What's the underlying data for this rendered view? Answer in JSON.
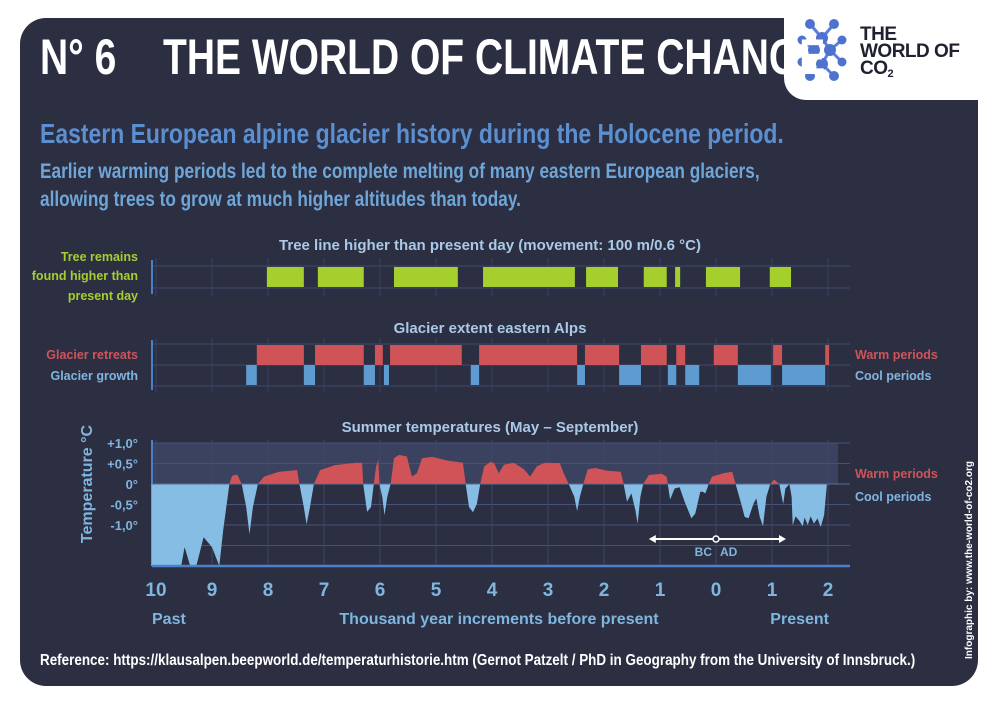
{
  "header": {
    "number": "N° 6",
    "title": "THE WORLD OF CLIMATE CHANGE"
  },
  "logo": {
    "line1": "THE",
    "line2": "WORLD OF",
    "line3": "CO",
    "line3_sub": "2"
  },
  "subtitle": "Eastern European alpine glacier history during the Holocene period.",
  "description": [
    "Earlier warming periods led to the complete melting of many eastern European glaciers,",
    "allowing trees to grow at much higher altitudes than today."
  ],
  "reference": "Reference: https://klausalpen.beepworld.de/temperaturhistorie.htm (Gernot Patzelt / PhD in Geography from the University of Innsbruck.)",
  "credit": "Infographic by: www.the-world-of-co2.org",
  "colors": {
    "background": "#2c2e42",
    "green": "#a4cf2d",
    "red": "#d05457",
    "blue": "#5e9bd1",
    "cool_fill": "#86bde4",
    "label_blue": "#7fb6e0"
  },
  "chart_data": [
    {
      "type": "bar",
      "title": "Tree line higher than present day (movement: 100 m/0.6 °C)",
      "row_label": [
        "Tree remains",
        "found higher than",
        "present day"
      ],
      "series": [
        {
          "name": "Tree remains found higher than present day",
          "intervals": [
            [
              -8.02,
              -7.36
            ],
            [
              -7.11,
              -6.29
            ],
            [
              -5.75,
              -4.61
            ],
            [
              -4.16,
              -2.52
            ],
            [
              -2.32,
              -1.75
            ],
            [
              -1.29,
              -0.88
            ],
            [
              -0.73,
              -0.64
            ],
            [
              -0.18,
              0.43
            ],
            [
              0.96,
              1.34
            ]
          ]
        }
      ]
    },
    {
      "type": "bar",
      "title": "Glacier extent eastern Alps",
      "series": [
        {
          "name": "Glacier retreats",
          "legend": "Warm periods",
          "intervals": [
            [
              -8.2,
              -7.36
            ],
            [
              -7.16,
              -6.29
            ],
            [
              -6.09,
              -5.95
            ],
            [
              -5.82,
              -4.54
            ],
            [
              -4.23,
              -2.48
            ],
            [
              -2.34,
              -1.73
            ],
            [
              -1.34,
              -0.88
            ],
            [
              -0.71,
              -0.55
            ],
            [
              -0.04,
              0.39
            ],
            [
              1.02,
              1.18
            ],
            [
              1.95,
              2.02
            ]
          ]
        },
        {
          "name": "Glacier growth",
          "legend": "Cool periods",
          "intervals": [
            [
              -8.39,
              -8.2
            ],
            [
              -7.36,
              -7.16
            ],
            [
              -6.29,
              -6.09
            ],
            [
              -5.93,
              -5.84
            ],
            [
              -4.38,
              -4.23
            ],
            [
              -2.48,
              -2.34
            ],
            [
              -1.73,
              -1.34
            ],
            [
              -0.86,
              -0.71
            ],
            [
              -0.55,
              -0.3
            ],
            [
              0.39,
              0.98
            ],
            [
              1.18,
              1.95
            ]
          ]
        }
      ]
    },
    {
      "type": "area",
      "title": "Summer temperatures (May – September)",
      "ylabel": "Temperature °C",
      "xlabel": "Thousand year increments before present",
      "x_left_label": "Past",
      "x_right_label": "Present",
      "xlim": [
        -10.08,
        2.2
      ],
      "ylim": [
        -2.0,
        1.0
      ],
      "yticks": [
        {
          "v": 1.0,
          "label": "+1,0°"
        },
        {
          "v": 0.5,
          "label": "+0,5°"
        },
        {
          "v": 0,
          "label": "0°"
        },
        {
          "v": -0.5,
          "label": "-0,5°"
        },
        {
          "v": -1.0,
          "label": "-1,0°"
        }
      ],
      "xticks": [
        {
          "v": -10,
          "label": "10"
        },
        {
          "v": -9,
          "label": "9"
        },
        {
          "v": -8,
          "label": "8"
        },
        {
          "v": -7,
          "label": "7"
        },
        {
          "v": -6,
          "label": "6"
        },
        {
          "v": -5,
          "label": "5"
        },
        {
          "v": -4,
          "label": "4"
        },
        {
          "v": -3,
          "label": "3"
        },
        {
          "v": -2,
          "label": "2"
        },
        {
          "v": -1,
          "label": "1"
        },
        {
          "v": 0,
          "label": "0"
        },
        {
          "v": 1,
          "label": "1"
        },
        {
          "v": 2,
          "label": "2"
        }
      ],
      "legend": {
        "warm": "Warm periods",
        "cool": "Cool periods"
      },
      "era": {
        "bc": "BC",
        "ad": "AD",
        "arrow_from": -1.2,
        "arrow_to": 1.25
      },
      "points": [
        [
          -10.08,
          0
        ],
        [
          -10.08,
          -2
        ],
        [
          -9.55,
          -2
        ],
        [
          -9.49,
          -1.54
        ],
        [
          -9.39,
          -2
        ],
        [
          -9.28,
          -2
        ],
        [
          -9.15,
          -1.3
        ],
        [
          -9.0,
          -1.54
        ],
        [
          -8.87,
          -2
        ],
        [
          -8.8,
          -1.13
        ],
        [
          -8.69,
          0
        ],
        [
          -8.64,
          0.2
        ],
        [
          -8.55,
          0.23
        ],
        [
          -8.47,
          0
        ],
        [
          -8.39,
          -0.56
        ],
        [
          -8.33,
          -1.23
        ],
        [
          -8.27,
          -0.56
        ],
        [
          -8.18,
          0
        ],
        [
          -8.07,
          0.18
        ],
        [
          -7.8,
          0.3
        ],
        [
          -7.48,
          0.34
        ],
        [
          -7.44,
          0
        ],
        [
          -7.36,
          -0.56
        ],
        [
          -7.31,
          -0.98
        ],
        [
          -7.25,
          -0.56
        ],
        [
          -7.18,
          0
        ],
        [
          -7.07,
          0.34
        ],
        [
          -6.8,
          0.46
        ],
        [
          -6.43,
          0.52
        ],
        [
          -6.32,
          0.52
        ],
        [
          -6.3,
          0
        ],
        [
          -6.23,
          -0.68
        ],
        [
          -6.16,
          -0.56
        ],
        [
          -6.11,
          0
        ],
        [
          -6.07,
          0.43
        ],
        [
          -6.03,
          0.59
        ],
        [
          -6.01,
          0
        ],
        [
          -5.96,
          -0.31
        ],
        [
          -5.92,
          -0.76
        ],
        [
          -5.87,
          -0.31
        ],
        [
          -5.81,
          0
        ],
        [
          -5.75,
          0.63
        ],
        [
          -5.66,
          0.71
        ],
        [
          -5.52,
          0.67
        ],
        [
          -5.43,
          0.18
        ],
        [
          -5.34,
          0.26
        ],
        [
          -5.25,
          0.63
        ],
        [
          -5.07,
          0.66
        ],
        [
          -4.79,
          0.57
        ],
        [
          -4.52,
          0.52
        ],
        [
          -4.47,
          0
        ],
        [
          -4.41,
          -0.56
        ],
        [
          -4.34,
          -0.69
        ],
        [
          -4.27,
          -0.48
        ],
        [
          -4.21,
          0
        ],
        [
          -4.14,
          0.43
        ],
        [
          -4.03,
          0.54
        ],
        [
          -3.96,
          0.51
        ],
        [
          -3.88,
          0.26
        ],
        [
          -3.79,
          0.47
        ],
        [
          -3.61,
          0.52
        ],
        [
          -3.43,
          0.36
        ],
        [
          -3.32,
          0.18
        ],
        [
          -3.2,
          0.43
        ],
        [
          -3.06,
          0.52
        ],
        [
          -2.79,
          0.51
        ],
        [
          -2.72,
          0.26
        ],
        [
          -2.63,
          0
        ],
        [
          -2.53,
          -0.31
        ],
        [
          -2.48,
          -0.66
        ],
        [
          -2.43,
          -0.31
        ],
        [
          -2.37,
          0
        ],
        [
          -2.29,
          0.36
        ],
        [
          -2.15,
          0.39
        ],
        [
          -1.97,
          0.33
        ],
        [
          -1.7,
          0.3
        ],
        [
          -1.65,
          0
        ],
        [
          -1.59,
          -0.43
        ],
        [
          -1.51,
          -0.23
        ],
        [
          -1.44,
          -0.64
        ],
        [
          -1.4,
          -0.97
        ],
        [
          -1.35,
          -0.31
        ],
        [
          -1.3,
          0
        ],
        [
          -1.2,
          0.22
        ],
        [
          -0.97,
          0.25
        ],
        [
          -0.88,
          0.18
        ],
        [
          -0.86,
          0
        ],
        [
          -0.82,
          -0.38
        ],
        [
          -0.74,
          -0.11
        ],
        [
          -0.65,
          -0.08
        ],
        [
          -0.56,
          -0.43
        ],
        [
          -0.44,
          -0.84
        ],
        [
          -0.37,
          -0.72
        ],
        [
          -0.28,
          -0.19
        ],
        [
          -0.24,
          -0.19
        ],
        [
          -0.19,
          -0.23
        ],
        [
          -0.13,
          0
        ],
        [
          -0.07,
          0.18
        ],
        [
          0.13,
          0.26
        ],
        [
          0.29,
          0.3
        ],
        [
          0.35,
          0
        ],
        [
          0.45,
          -0.48
        ],
        [
          0.51,
          -0.8
        ],
        [
          0.58,
          -0.84
        ],
        [
          0.67,
          -0.48
        ],
        [
          0.72,
          -0.35
        ],
        [
          0.78,
          -0.8
        ],
        [
          0.84,
          -1.03
        ],
        [
          0.9,
          -0.31
        ],
        [
          0.97,
          0
        ],
        [
          1.04,
          0.11
        ],
        [
          1.13,
          0
        ],
        [
          1.2,
          -0.49
        ],
        [
          1.24,
          -0.11
        ],
        [
          1.31,
          0
        ],
        [
          1.35,
          -0.31
        ],
        [
          1.37,
          -1.01
        ],
        [
          1.42,
          -0.79
        ],
        [
          1.49,
          -0.9
        ],
        [
          1.55,
          -1.03
        ],
        [
          1.58,
          -0.82
        ],
        [
          1.64,
          -1.0
        ],
        [
          1.69,
          -0.79
        ],
        [
          1.75,
          -0.97
        ],
        [
          1.81,
          -0.84
        ],
        [
          1.87,
          -1.05
        ],
        [
          1.93,
          -0.76
        ],
        [
          1.98,
          0
        ]
      ]
    }
  ]
}
